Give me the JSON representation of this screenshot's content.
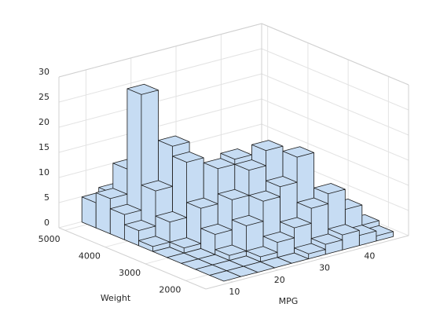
{
  "chart_data": {
    "type": "hist3",
    "xlabel": "MPG",
    "ylabel": "Weight",
    "x_bins": [
      9,
      12.76,
      16.52,
      20.28,
      24.04,
      27.8,
      31.56,
      35.32,
      39.08,
      42.84,
      46.6
    ],
    "y_bins": [
      1613,
      1965.7,
      2318.4,
      2671.1,
      3023.8,
      3376.5,
      3729.2,
      4081.9,
      4434.6,
      4787.3,
      5140
    ],
    "counts": [
      [
        0,
        0,
        0,
        0,
        0,
        1,
        3,
        5,
        7,
        5
      ],
      [
        0,
        0,
        0,
        0,
        1,
        5,
        10,
        28,
        12,
        6
      ],
      [
        0,
        0,
        1,
        4,
        8,
        16,
        18,
        15,
        3,
        1
      ],
      [
        0,
        1,
        6,
        10,
        15,
        13,
        5,
        2,
        0,
        0
      ],
      [
        0,
        3,
        10,
        15,
        16,
        6,
        2,
        0,
        0,
        0
      ],
      [
        1,
        5,
        12,
        18,
        8,
        3,
        0,
        0,
        0,
        0
      ],
      [
        2,
        8,
        17,
        10,
        3,
        0,
        0,
        0,
        0,
        0
      ],
      [
        3,
        10,
        8,
        2,
        0,
        0,
        0,
        0,
        0,
        0
      ],
      [
        2,
        6,
        3,
        0,
        0,
        0,
        0,
        0,
        0,
        0
      ],
      [
        1,
        2,
        1,
        0,
        0,
        0,
        0,
        0,
        0,
        0
      ]
    ],
    "color": "#c6dcf3",
    "edge_color": "#1a1a1a",
    "xlim": [
      4,
      49
    ],
    "ylim": [
      1500,
      5150
    ],
    "zlim": [
      0,
      30
    ],
    "xticks": [
      10,
      20,
      30,
      40
    ],
    "yticks": [
      2000,
      3000,
      4000,
      5000
    ],
    "zticks": [
      0,
      5,
      10,
      15,
      20,
      25,
      30
    ],
    "grid": true
  }
}
